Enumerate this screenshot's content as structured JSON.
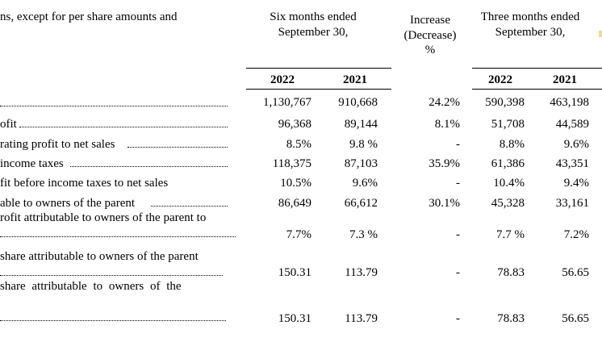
{
  "header": {
    "label_fragment": "ns, except for per share amounts and",
    "six_months": [
      "Six months ended",
      "September 30,"
    ],
    "increase": [
      "Increase",
      "(Decrease)",
      "%"
    ],
    "three_months": [
      "Three months ended",
      "September 30,"
    ],
    "years": [
      "2022",
      "2021",
      "2022",
      "2021"
    ]
  },
  "rows": [
    {
      "label": "",
      "values": [
        "1,130,767",
        "910,668",
        "24.2%",
        "590,398",
        "463,198"
      ]
    },
    {
      "label": "ofit",
      "values": [
        "96,368",
        "89,144",
        "8.1%",
        "51,708",
        "44,589"
      ]
    },
    {
      "label": "rating profit to net sales",
      "values": [
        "8.5%",
        "9.8 %",
        "-",
        "8.8%",
        "9.6%"
      ]
    },
    {
      "label": "income taxes",
      "values": [
        "118,375",
        "87,103",
        "35.9%",
        "61,386",
        "43,351"
      ]
    },
    {
      "label": "fit before income taxes to net sales",
      "values": [
        "10.5%",
        "9.6%",
        "-",
        "10.4%",
        "9.4%"
      ]
    },
    {
      "label": "able to owners of the parent",
      "values": [
        "86,649",
        "66,612",
        "30.1%",
        "45,328",
        "33,161"
      ]
    },
    {
      "label": "rofit attributable to owners of the parent to",
      "values": [
        "7.7%",
        "7.3 %",
        "-",
        "7.7 %",
        "7.2%"
      ]
    },
    {
      "label": "share attributable to owners of the parent",
      "values": [
        "150.31",
        "113.79",
        "-",
        "78.83",
        "56.65"
      ]
    },
    {
      "label": "share  attributable  to  owners  of  the",
      "values": [
        "150.31",
        "113.79",
        "-",
        "78.83",
        "56.65"
      ]
    }
  ]
}
